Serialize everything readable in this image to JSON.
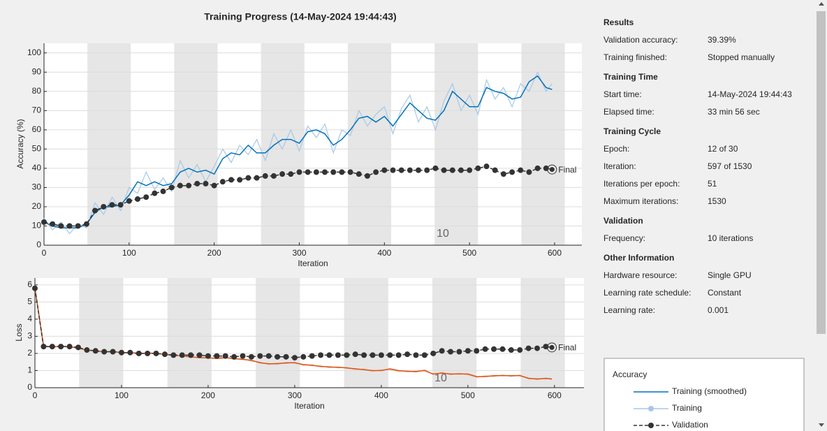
{
  "title": "Training Progress (14-May-2024 19:44:43)",
  "chart_data": [
    {
      "type": "line",
      "ylabel": "Accuracy (%)",
      "xlabel": "Iteration",
      "legend_title": "Accuracy",
      "annotations": [
        "10",
        "Final"
      ],
      "x": [
        0,
        10,
        20,
        30,
        40,
        50,
        60,
        70,
        80,
        90,
        100,
        110,
        120,
        130,
        140,
        150,
        160,
        170,
        180,
        190,
        200,
        210,
        220,
        230,
        240,
        250,
        260,
        270,
        280,
        290,
        300,
        310,
        320,
        330,
        340,
        350,
        360,
        370,
        380,
        390,
        400,
        410,
        420,
        430,
        440,
        450,
        460,
        470,
        480,
        490,
        500,
        510,
        520,
        530,
        540,
        550,
        560,
        570,
        580,
        590,
        597
      ],
      "xlim": [
        0,
        632
      ],
      "xticks": [
        0,
        100,
        200,
        300,
        400,
        500,
        600
      ],
      "ylim": [
        0,
        105
      ],
      "yticks": [
        0,
        10,
        20,
        30,
        40,
        50,
        60,
        70,
        80,
        90,
        100
      ],
      "grid": true,
      "series": [
        {
          "name": "Training (smoothed)",
          "color": "#0072bd",
          "values": [
            12,
            10,
            9,
            9,
            9,
            11,
            17,
            20,
            20,
            21,
            26,
            33,
            31,
            33,
            31,
            32,
            38,
            40,
            38,
            39,
            37,
            45,
            48,
            47,
            52,
            48,
            48,
            52,
            55,
            55,
            53,
            59,
            60,
            58,
            52,
            55,
            60,
            66,
            67,
            64,
            67,
            62,
            68,
            74,
            70,
            66,
            65,
            70,
            80,
            76,
            72,
            72,
            82,
            80,
            79,
            76,
            77,
            85,
            88,
            82,
            81
          ]
        },
        {
          "name": "Training",
          "color": "#a6c8e6",
          "values": [
            14,
            8,
            12,
            6,
            11,
            9,
            22,
            16,
            25,
            18,
            30,
            27,
            38,
            29,
            35,
            28,
            44,
            35,
            42,
            33,
            41,
            50,
            43,
            52,
            47,
            55,
            44,
            58,
            50,
            60,
            49,
            62,
            56,
            63,
            48,
            60,
            57,
            70,
            62,
            68,
            72,
            58,
            71,
            78,
            64,
            72,
            60,
            75,
            84,
            70,
            78,
            68,
            86,
            76,
            82,
            72,
            84,
            80,
            90,
            80,
            84
          ]
        },
        {
          "name": "Validation",
          "color": "#333333",
          "values": [
            12,
            11,
            10,
            10,
            10,
            11,
            18,
            20,
            21,
            21,
            23,
            24,
            25,
            27,
            28,
            30,
            31,
            31,
            32,
            32,
            31,
            33,
            34,
            34,
            35,
            35,
            36,
            36,
            37,
            37,
            38,
            38,
            38,
            38,
            38,
            38,
            38,
            37,
            36,
            38,
            39,
            39,
            39,
            39,
            39,
            39,
            40,
            39,
            39,
            39,
            39,
            40,
            41,
            39,
            37,
            38,
            39,
            38,
            40,
            40,
            39.39
          ]
        }
      ]
    },
    {
      "type": "line",
      "ylabel": "Loss",
      "xlabel": "Iteration",
      "annotations": [
        "10",
        "Final"
      ],
      "x": [
        0,
        10,
        20,
        30,
        40,
        50,
        60,
        70,
        80,
        90,
        100,
        110,
        120,
        130,
        140,
        150,
        160,
        170,
        180,
        190,
        200,
        210,
        220,
        230,
        240,
        250,
        260,
        270,
        280,
        290,
        300,
        310,
        320,
        330,
        340,
        350,
        360,
        370,
        380,
        390,
        400,
        410,
        420,
        430,
        440,
        450,
        460,
        470,
        480,
        490,
        500,
        510,
        520,
        530,
        540,
        550,
        560,
        570,
        580,
        590,
        597
      ],
      "xlim": [
        0,
        634
      ],
      "xticks": [
        0,
        100,
        200,
        300,
        400,
        500,
        600
      ],
      "ylim": [
        0,
        6.4
      ],
      "yticks": [
        0,
        1,
        2,
        3,
        4,
        5,
        6
      ],
      "grid": true,
      "series": [
        {
          "color": "#d95319",
          "values": [
            5.8,
            2.4,
            2.4,
            2.4,
            2.4,
            2.3,
            2.2,
            2.15,
            2.1,
            2.1,
            2.05,
            2.05,
            2.0,
            2.0,
            2.0,
            1.95,
            1.9,
            1.85,
            1.8,
            1.75,
            1.75,
            1.7,
            1.75,
            1.7,
            1.65,
            1.6,
            1.45,
            1.4,
            1.4,
            1.45,
            1.45,
            1.35,
            1.3,
            1.25,
            1.2,
            1.2,
            1.15,
            1.1,
            1.05,
            1.0,
            1.0,
            1.1,
            1.0,
            0.95,
            0.95,
            1.0,
            0.8,
            0.85,
            0.8,
            0.8,
            0.8,
            0.65,
            0.65,
            0.7,
            0.7,
            0.7,
            0.7,
            0.55,
            0.5,
            0.55,
            0.5
          ]
        },
        {
          "color": "#f5b99a",
          "values": [
            5.9,
            2.5,
            2.3,
            2.5,
            2.3,
            2.4,
            2.1,
            2.2,
            2.0,
            2.2,
            2.0,
            2.1,
            1.9,
            2.1,
            1.95,
            2.0,
            1.8,
            1.9,
            1.75,
            1.8,
            1.7,
            1.75,
            1.8,
            1.65,
            1.7,
            1.55,
            1.5,
            1.35,
            1.45,
            1.4,
            1.5,
            1.3,
            1.35,
            1.2,
            1.25,
            1.15,
            1.2,
            1.05,
            1.1,
            0.95,
            1.05,
            1.05,
            0.95,
            1.0,
            0.9,
            1.05,
            0.75,
            0.9,
            0.75,
            0.85,
            0.75,
            0.6,
            0.7,
            0.65,
            0.75,
            0.65,
            0.75,
            0.5,
            0.55,
            0.5,
            0.55
          ]
        },
        {
          "color": "#333333",
          "values": [
            5.8,
            2.4,
            2.4,
            2.4,
            2.4,
            2.35,
            2.2,
            2.15,
            2.1,
            2.1,
            2.05,
            2.05,
            2.0,
            2.0,
            2.0,
            1.95,
            1.9,
            1.9,
            1.9,
            1.9,
            1.85,
            1.85,
            1.85,
            1.8,
            1.85,
            1.8,
            1.85,
            1.85,
            1.8,
            1.8,
            1.75,
            1.8,
            1.85,
            1.9,
            1.9,
            1.9,
            1.9,
            1.95,
            1.9,
            1.9,
            1.9,
            1.9,
            1.9,
            1.95,
            1.9,
            1.9,
            2.0,
            2.15,
            2.1,
            2.1,
            2.15,
            2.15,
            2.25,
            2.25,
            2.25,
            2.2,
            2.2,
            2.3,
            2.3,
            2.4,
            2.35
          ]
        }
      ]
    }
  ],
  "info": {
    "sections": [
      {
        "heading": "Results",
        "rows": [
          [
            "Validation accuracy:",
            "39.39%"
          ],
          [
            "Training finished:",
            "Stopped manually"
          ]
        ]
      },
      {
        "heading": "Training Time",
        "rows": [
          [
            "Start time:",
            "14-May-2024 19:44:43"
          ],
          [
            "Elapsed time:",
            "33 min 56 sec"
          ]
        ]
      },
      {
        "heading": "Training Cycle",
        "rows": [
          [
            "Epoch:",
            "12 of 30"
          ],
          [
            "Iteration:",
            "597 of 1530"
          ],
          [
            "Iterations per epoch:",
            "51"
          ],
          [
            "Maximum iterations:",
            "1530"
          ]
        ]
      },
      {
        "heading": "Validation",
        "rows": [
          [
            "Frequency:",
            "10 iterations"
          ]
        ]
      },
      {
        "heading": "Other Information",
        "rows": [
          [
            "Hardware resource:",
            "Single GPU"
          ],
          [
            "Learning rate schedule:",
            "Constant"
          ],
          [
            "Learning rate:",
            "0.001"
          ]
        ]
      }
    ]
  }
}
